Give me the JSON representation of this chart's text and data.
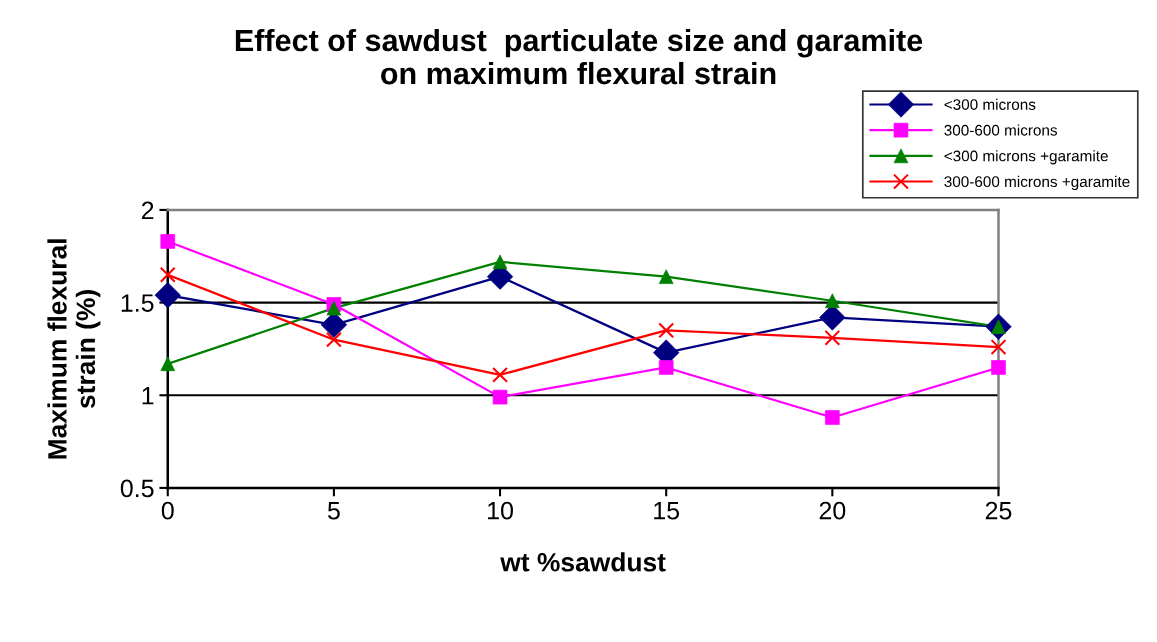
{
  "chart_data": {
    "type": "line",
    "title": "Effect of sawdust  particulate size and garamite\non maximum flexural strain",
    "xlabel": "wt %sawdust",
    "ylabel": "Maximum flexural\nstrain (%)",
    "x": [
      0,
      5,
      10,
      15,
      20,
      25
    ],
    "series": [
      {
        "name": "<300 microns",
        "color": "#000080",
        "marker": "diamond",
        "values": [
          1.54,
          1.38,
          1.64,
          1.23,
          1.42,
          1.37
        ]
      },
      {
        "name": "300-600 microns",
        "color": "#ff00ff",
        "marker": "square",
        "values": [
          1.83,
          1.49,
          0.99,
          1.15,
          0.88,
          1.15
        ]
      },
      {
        "name": "<300 microns +garamite",
        "color": "#008000",
        "marker": "triangle",
        "values": [
          1.17,
          1.47,
          1.72,
          1.64,
          1.51,
          1.37
        ]
      },
      {
        "name": "300-600 microns +garamite",
        "color": "#ff0000",
        "marker": "cross",
        "values": [
          1.65,
          1.3,
          1.11,
          1.35,
          1.31,
          1.26
        ]
      }
    ],
    "xlim": [
      0,
      25
    ],
    "xticks": [
      0,
      5,
      10,
      15,
      20,
      25
    ],
    "ylim": [
      0.5,
      2
    ],
    "yticks": [
      0.5,
      1,
      1.5,
      2
    ],
    "grid": "y",
    "legend": "top right",
    "line_style": "solid"
  }
}
